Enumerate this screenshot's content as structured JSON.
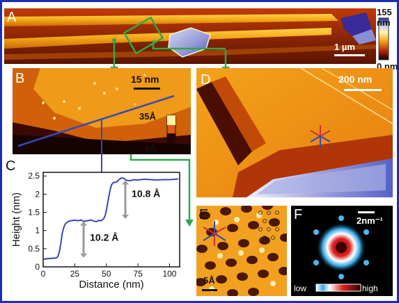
{
  "figure": {
    "panel_labels": {
      "A": "A",
      "B": "B",
      "C": "C",
      "D": "D",
      "E": "E",
      "F": "F"
    },
    "panelA": {
      "colorbar_max": "155 nm",
      "colorbar_min": "0 nm",
      "scalebar": "1 µm"
    },
    "panelB": {
      "scalebar": "15 nm",
      "colorbar_max": "35Å",
      "colorbar_min": "0Å"
    },
    "panelD": {
      "scalebar": "200 nm"
    },
    "panelE": {
      "scalebar": "5Å"
    },
    "panelF": {
      "scalebar": "2nm⁻¹",
      "cbar_low": "low",
      "cbar_high": "high"
    },
    "colors": {
      "border": "#1a2fb4",
      "arrow_green": "#2fa84a",
      "profile_line": "#3848b0",
      "step_arrow": "#9a9a9a"
    }
  },
  "chart_data": {
    "type": "line",
    "xlabel": "Distance (nm)",
    "ylabel": "Height (nm)",
    "xlim": [
      0,
      108
    ],
    "ylim": [
      0,
      2.6
    ],
    "xticks": [
      "0",
      "25",
      "50",
      "75",
      "100"
    ],
    "yticks": [
      "0",
      "0.5",
      "1",
      "1.5",
      "2",
      "2.5"
    ],
    "annotations": [
      "10.2 Å",
      "10.8 Å"
    ],
    "series": [
      {
        "x": [
          0,
          2,
          4,
          6,
          8,
          10,
          11,
          12,
          13,
          14,
          15,
          16,
          17,
          18,
          20,
          22,
          24,
          26,
          28,
          30,
          32,
          35,
          38,
          40,
          42,
          44,
          45,
          46,
          47,
          48,
          49,
          50,
          51,
          52,
          53,
          54,
          55,
          56,
          58,
          60,
          62,
          64,
          66,
          68,
          70,
          72,
          75,
          80,
          85,
          90,
          95,
          100,
          105,
          107
        ],
        "values": [
          0.2,
          0.22,
          0.23,
          0.23,
          0.24,
          0.24,
          0.26,
          0.32,
          0.45,
          0.65,
          0.9,
          1.05,
          1.15,
          1.2,
          1.25,
          1.27,
          1.28,
          1.28,
          1.27,
          1.29,
          1.25,
          1.27,
          1.29,
          1.26,
          1.24,
          1.28,
          1.27,
          1.27,
          1.3,
          1.33,
          1.4,
          1.55,
          1.75,
          1.95,
          2.12,
          2.25,
          2.3,
          2.32,
          2.33,
          2.4,
          2.45,
          2.43,
          2.38,
          2.37,
          2.38,
          2.4,
          2.39,
          2.41,
          2.4,
          2.39,
          2.4,
          2.4,
          2.41,
          2.42
        ]
      }
    ]
  }
}
